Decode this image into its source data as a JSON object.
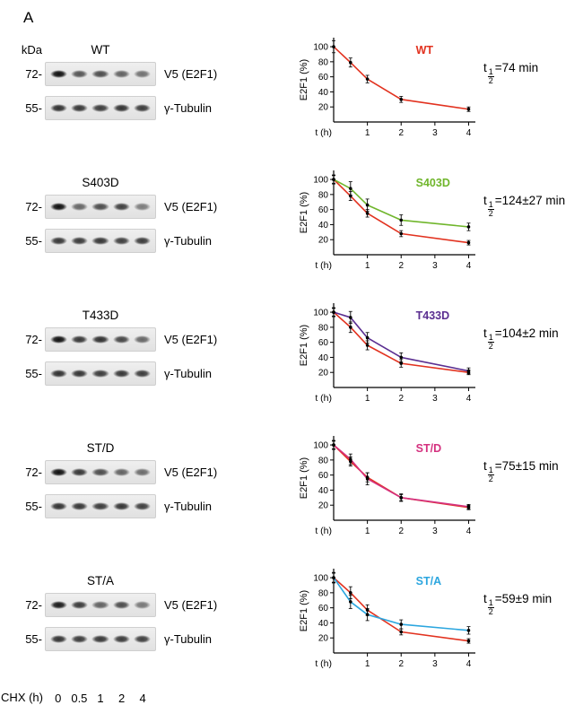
{
  "panel_label": "A",
  "shared": {
    "kda_header": "kDa",
    "marker_72": "72-",
    "marker_55": "55-",
    "v5_label": "V5 (E2F1)",
    "tubulin_label": "γ-Tubulin",
    "chx_label": "CHX (h)",
    "lane_labels": [
      "0",
      "0.5",
      "1",
      "2",
      "4"
    ],
    "t_prefix": "t",
    "frac_num": "1",
    "frac_den": "2"
  },
  "colors": {
    "wt_red": "#e2321f",
    "s403d_green": "#70b62c",
    "t433d_purple": "#5b2f91",
    "std_magenta": "#d4317f",
    "sta_blue": "#2ca6df"
  },
  "rows": [
    {
      "title": "WT",
      "half_life": "=74 min",
      "blot": {
        "v5": [
          1,
          0.68,
          0.72,
          0.62,
          0.55
        ],
        "tubulin": [
          0.85,
          0.82,
          0.8,
          0.84,
          0.8
        ]
      }
    },
    {
      "title": "S403D",
      "half_life": "=124±27 min",
      "blot": {
        "v5": [
          1,
          0.6,
          0.72,
          0.78,
          0.5
        ],
        "tubulin": [
          0.82,
          0.8,
          0.82,
          0.78,
          0.8
        ]
      }
    },
    {
      "title": "T433D",
      "half_life": "=104±2 min",
      "blot": {
        "v5": [
          1,
          0.82,
          0.85,
          0.75,
          0.6
        ],
        "tubulin": [
          0.85,
          0.83,
          0.8,
          0.82,
          0.8
        ]
      }
    },
    {
      "title": "ST/D",
      "half_life": "=75±15 min",
      "blot": {
        "v5": [
          1,
          0.82,
          0.72,
          0.62,
          0.58
        ],
        "tubulin": [
          0.84,
          0.82,
          0.8,
          0.83,
          0.78
        ]
      }
    },
    {
      "title": "ST/A",
      "half_life": "=59±9 min",
      "blot": {
        "v5": [
          0.95,
          0.8,
          0.62,
          0.72,
          0.52
        ],
        "tubulin": [
          0.84,
          0.8,
          0.82,
          0.8,
          0.78
        ]
      }
    }
  ],
  "chart_data": [
    {
      "type": "line",
      "title": "WT",
      "xlabel": "t (h)",
      "ylabel": "E2F1 (%)",
      "xlim": [
        0,
        4.2
      ],
      "ylim": [
        0,
        112
      ],
      "xticks": [
        1,
        2,
        3,
        4
      ],
      "yticks": [
        20,
        40,
        60,
        80,
        100
      ],
      "x": [
        0,
        0.5,
        1,
        2,
        4
      ],
      "series": [
        {
          "name": "WT",
          "color": "#e2321f",
          "y": [
            100,
            79,
            57,
            30,
            17
          ],
          "err": [
            8,
            6,
            5,
            4,
            3
          ]
        }
      ],
      "label": {
        "text": "WT",
        "color": "#e2321f"
      }
    },
    {
      "type": "line",
      "title": "S403D",
      "xlabel": "t (h)",
      "ylabel": "E2F1 (%)",
      "xlim": [
        0,
        4.2
      ],
      "ylim": [
        0,
        112
      ],
      "xticks": [
        1,
        2,
        3,
        4
      ],
      "yticks": [
        20,
        40,
        60,
        80,
        100
      ],
      "x": [
        0,
        0.5,
        1,
        2,
        4
      ],
      "series": [
        {
          "name": "WT",
          "color": "#e2321f",
          "y": [
            100,
            78,
            55,
            28,
            16
          ],
          "err": [
            5,
            6,
            5,
            4,
            3
          ]
        },
        {
          "name": "S403D",
          "color": "#70b62c",
          "y": [
            100,
            88,
            66,
            46,
            37
          ],
          "err": [
            6,
            9,
            8,
            7,
            5
          ]
        }
      ],
      "label": {
        "text": "S403D",
        "color": "#70b62c"
      }
    },
    {
      "type": "line",
      "title": "T433D",
      "xlabel": "t (h)",
      "ylabel": "E2F1 (%)",
      "xlim": [
        0,
        4.2
      ],
      "ylim": [
        0,
        112
      ],
      "xticks": [
        1,
        2,
        3,
        4
      ],
      "yticks": [
        20,
        40,
        60,
        80,
        100
      ],
      "x": [
        0,
        0.5,
        1,
        2,
        4
      ],
      "series": [
        {
          "name": "WT",
          "color": "#e2321f",
          "y": [
            100,
            80,
            56,
            32,
            20
          ],
          "err": [
            5,
            7,
            6,
            5,
            3
          ]
        },
        {
          "name": "T433D",
          "color": "#5b2f91",
          "y": [
            100,
            93,
            66,
            40,
            22
          ],
          "err": [
            6,
            8,
            7,
            6,
            4
          ]
        }
      ],
      "label": {
        "text": "T433D",
        "color": "#5b2f91"
      }
    },
    {
      "type": "line",
      "title": "ST/D",
      "xlabel": "t (h)",
      "ylabel": "E2F1 (%)",
      "xlim": [
        0,
        4.2
      ],
      "ylim": [
        0,
        112
      ],
      "xticks": [
        1,
        2,
        3,
        4
      ],
      "yticks": [
        20,
        40,
        60,
        80,
        100
      ],
      "x": [
        0,
        0.5,
        1,
        2,
        4
      ],
      "series": [
        {
          "name": "WT",
          "color": "#e2321f",
          "y": [
            100,
            78,
            57,
            30,
            17
          ],
          "err": [
            5,
            6,
            6,
            4,
            3
          ]
        },
        {
          "name": "ST/D",
          "color": "#d4317f",
          "y": [
            100,
            81,
            55,
            30,
            18
          ],
          "err": [
            6,
            7,
            8,
            5,
            3
          ]
        }
      ],
      "label": {
        "text": "ST/D",
        "color": "#d4317f"
      }
    },
    {
      "type": "line",
      "title": "ST/A",
      "xlabel": "t (h)",
      "ylabel": "E2F1 (%)",
      "xlim": [
        0,
        4.2
      ],
      "ylim": [
        0,
        112
      ],
      "xticks": [
        1,
        2,
        3,
        4
      ],
      "yticks": [
        20,
        40,
        60,
        80,
        100
      ],
      "x": [
        0,
        0.5,
        1,
        2,
        4
      ],
      "series": [
        {
          "name": "WT",
          "color": "#e2321f",
          "y": [
            100,
            80,
            57,
            28,
            16
          ],
          "err": [
            6,
            8,
            7,
            4,
            3
          ]
        },
        {
          "name": "ST/A",
          "color": "#2ca6df",
          "y": [
            100,
            68,
            51,
            38,
            30
          ],
          "err": [
            7,
            9,
            8,
            6,
            5
          ]
        }
      ],
      "label": {
        "text": "ST/A",
        "color": "#2ca6df"
      }
    }
  ]
}
